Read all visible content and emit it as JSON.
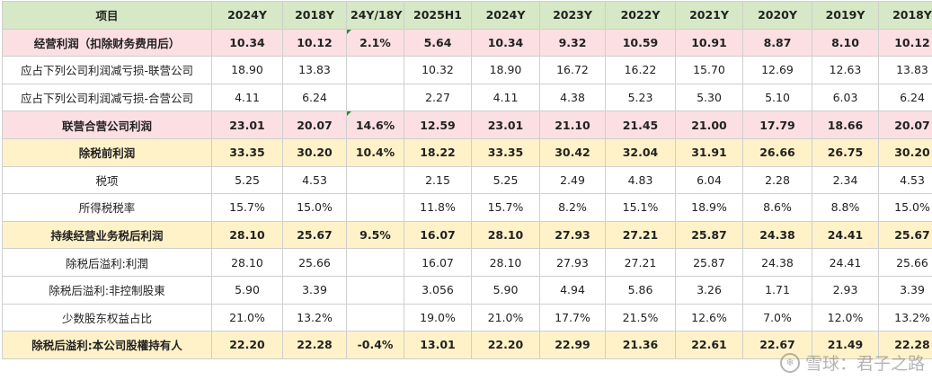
{
  "headers": [
    "项目",
    "2024Y",
    "2018Y",
    "24Y/18Y",
    "2025H1",
    "2024Y",
    "2023Y",
    "2022Y",
    "2021Y",
    "2020Y",
    "2019Y",
    "2018Y"
  ],
  "rows": [
    {
      "label": "经营利润（扣除财务费用后）",
      "style": "hl-pink",
      "cells": [
        "10.34",
        "10.12",
        "2.1%",
        "5.64",
        "10.34",
        "9.32",
        "10.59",
        "10.91",
        "8.87",
        "8.10",
        "10.12"
      ]
    },
    {
      "label": "应占下列公司利润减亏损-联营公司",
      "style": "plain",
      "cells": [
        "18.90",
        "13.83",
        "",
        "10.32",
        "18.90",
        "16.72",
        "16.22",
        "15.70",
        "12.69",
        "12.63",
        "13.83"
      ]
    },
    {
      "label": "应占下列公司利润减亏损-合营公司",
      "style": "plain",
      "cells": [
        "4.11",
        "6.24",
        "",
        "2.27",
        "4.11",
        "4.38",
        "5.23",
        "5.30",
        "5.10",
        "6.03",
        "6.24"
      ]
    },
    {
      "label": "联营合营公司利润",
      "style": "hl-pink",
      "cells": [
        "23.01",
        "20.07",
        "14.6%",
        "12.59",
        "23.01",
        "21.10",
        "21.45",
        "21.00",
        "17.79",
        "18.66",
        "20.07"
      ]
    },
    {
      "label": "除税前利润",
      "style": "hl-yellow",
      "cells": [
        "33.35",
        "30.20",
        "10.4%",
        "18.22",
        "33.35",
        "30.42",
        "32.04",
        "31.91",
        "26.66",
        "26.75",
        "30.20"
      ]
    },
    {
      "label": "税项",
      "style": "plain",
      "cells": [
        "5.25",
        "4.53",
        "",
        "2.15",
        "5.25",
        "2.49",
        "4.83",
        "6.04",
        "2.28",
        "2.34",
        "4.53"
      ]
    },
    {
      "label": "所得税税率",
      "style": "plain",
      "cells": [
        "15.7%",
        "15.0%",
        "",
        "11.8%",
        "15.7%",
        "8.2%",
        "15.1%",
        "18.9%",
        "8.6%",
        "8.8%",
        "15.0%"
      ]
    },
    {
      "label": "持续经营业务税后利润",
      "style": "hl-yellow",
      "cells": [
        "28.10",
        "25.67",
        "9.5%",
        "16.07",
        "28.10",
        "27.93",
        "27.21",
        "25.87",
        "24.38",
        "24.41",
        "25.67"
      ]
    },
    {
      "label": "除税后溢利:利潤",
      "style": "plain",
      "cells": [
        "28.10",
        "25.66",
        "",
        "16.07",
        "28.10",
        "27.93",
        "27.21",
        "25.87",
        "24.38",
        "24.41",
        "25.66"
      ]
    },
    {
      "label": "除税后溢利:非控制股東",
      "style": "plain",
      "cells": [
        "5.90",
        "3.39",
        "",
        "3.056",
        "5.90",
        "4.94",
        "5.86",
        "3.26",
        "1.71",
        "2.93",
        "3.39"
      ]
    },
    {
      "label": "少数股东权益占比",
      "style": "plain",
      "cells": [
        "21.0%",
        "13.2%",
        "",
        "19.0%",
        "21.0%",
        "17.7%",
        "21.5%",
        "12.6%",
        "7.0%",
        "12.0%",
        "13.2%"
      ]
    },
    {
      "label": "除税后溢利:本公司股權持有人",
      "style": "hl-yellow",
      "cells": [
        "22.20",
        "22.28",
        "-0.4%",
        "13.01",
        "22.20",
        "22.99",
        "21.36",
        "22.61",
        "22.67",
        "21.49",
        "22.28"
      ]
    }
  ],
  "watermark": "雪球：君子之路",
  "watermark_icon": "snowball-logo-icon"
}
